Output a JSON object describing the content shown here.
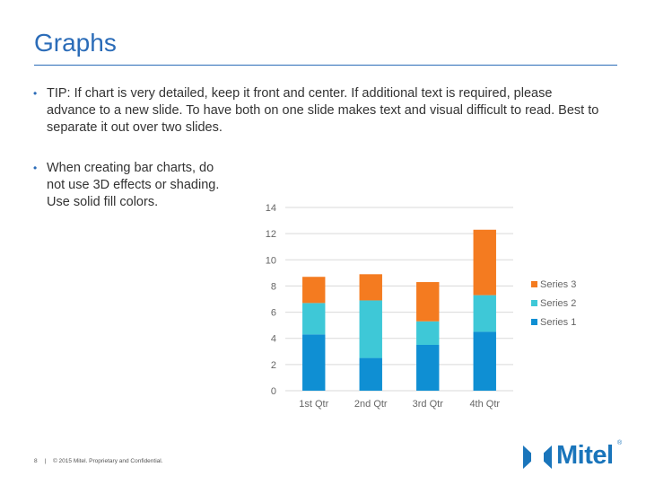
{
  "slide": {
    "title": "Graphs",
    "bullets": [
      "TIP: If chart is very detailed, keep it front and center. If additional text is required, please advance to a new slide. To have both on one slide makes text and visual difficult to read. Best to separate it out over two slides.",
      "When creating bar charts, do not use 3D effects or shading. Use solid fill colors."
    ],
    "bullet_glyph": "•"
  },
  "footer": {
    "page_number": "8",
    "separator": "|",
    "copyright": "© 2015 Mitel. Proprietary and Confidential."
  },
  "logo": {
    "wordmark": "Mitel",
    "trademark": "®"
  },
  "colors": {
    "accent": "#2b6cb8",
    "series1": "#0f8fd3",
    "series2": "#3ec8d7",
    "series3": "#f47b20"
  },
  "chart_data": {
    "type": "bar",
    "stacked": true,
    "categories": [
      "1st Qtr",
      "2nd Qtr",
      "3rd Qtr",
      "4th Qtr"
    ],
    "series": [
      {
        "name": "Series 1",
        "values": [
          4.3,
          2.5,
          3.5,
          4.5
        ],
        "color": "#0f8fd3"
      },
      {
        "name": "Series 2",
        "values": [
          2.4,
          4.4,
          1.8,
          2.8
        ],
        "color": "#3ec8d7"
      },
      {
        "name": "Series 3",
        "values": [
          2.0,
          2.0,
          3.0,
          5.0
        ],
        "color": "#f47b20"
      }
    ],
    "ylim": [
      0,
      14
    ],
    "yticks": [
      0,
      2,
      4,
      6,
      8,
      10,
      12,
      14
    ],
    "grid": true,
    "legend": "right"
  }
}
